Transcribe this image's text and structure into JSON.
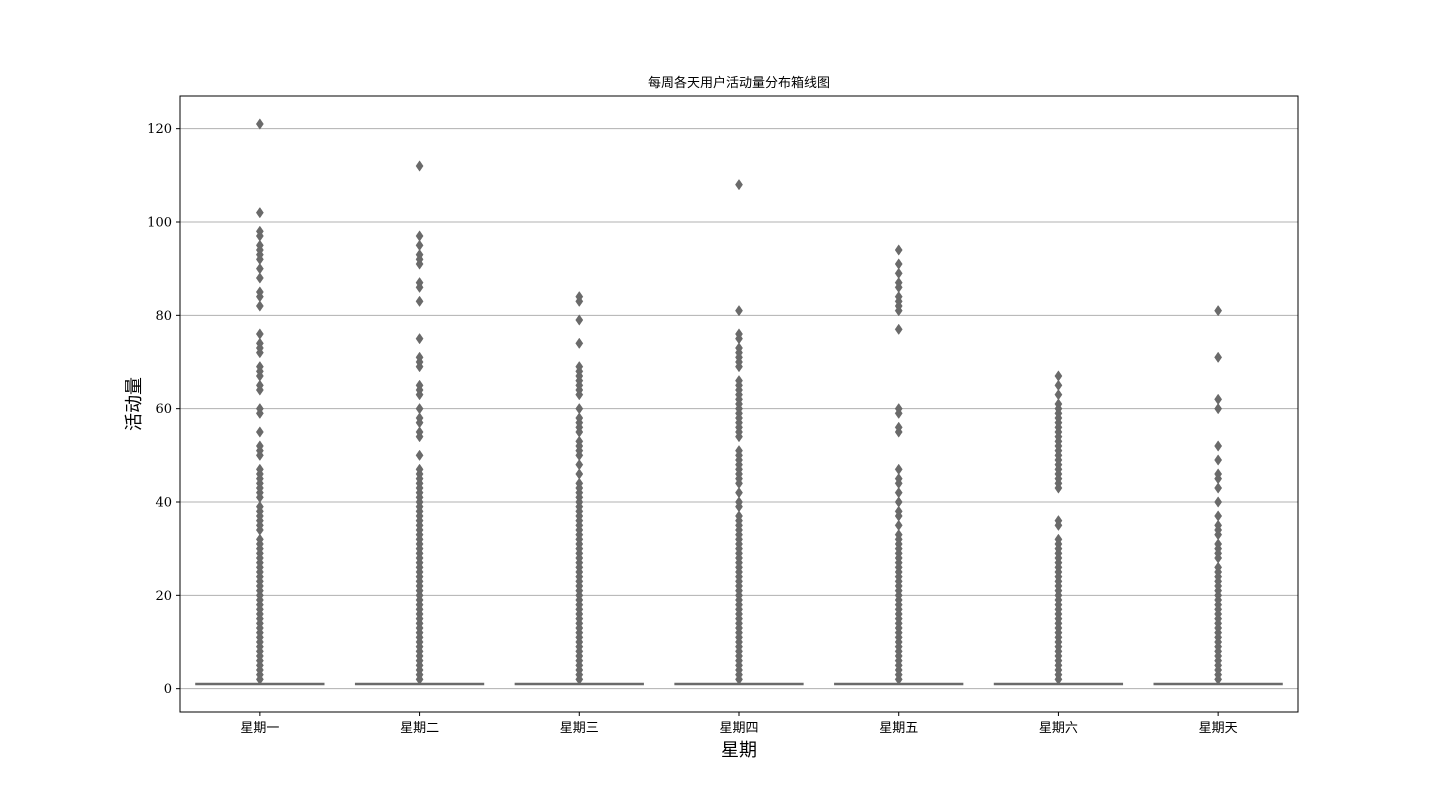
{
  "chart_data": {
    "type": "box",
    "title": "每周各天用户活动量分布箱线图",
    "xlabel": "星期",
    "ylabel": "活动量",
    "categories": [
      "星期一",
      "星期二",
      "星期三",
      "星期四",
      "星期五",
      "星期六",
      "星期天"
    ],
    "ylim": [
      -5,
      127
    ],
    "yticks": [
      0,
      20,
      40,
      60,
      80,
      100,
      120
    ],
    "grid": "y",
    "box_color": "#6a6a6a",
    "median": [
      1,
      1,
      1,
      1,
      1,
      1,
      1
    ],
    "q1": [
      1,
      1,
      1,
      1,
      1,
      1,
      1
    ],
    "q3": [
      1,
      1,
      1,
      1,
      1,
      1,
      1
    ],
    "whisker_low": [
      1,
      1,
      1,
      1,
      1,
      1,
      1
    ],
    "whisker_high": [
      1,
      1,
      1,
      1,
      1,
      1,
      1
    ],
    "outliers": [
      [
        2,
        3,
        4,
        5,
        6,
        7,
        8,
        9,
        10,
        11,
        12,
        13,
        14,
        15,
        16,
        17,
        18,
        19,
        20,
        21,
        22,
        23,
        24,
        25,
        26,
        27,
        28,
        29,
        30,
        31,
        32,
        34,
        35,
        36,
        37,
        38,
        39,
        41,
        42,
        43,
        44,
        45,
        46,
        47,
        50,
        51,
        52,
        55,
        59,
        60,
        64,
        65,
        67,
        68,
        69,
        72,
        73,
        74,
        76,
        82,
        84,
        85,
        88,
        90,
        92,
        93,
        94,
        95,
        97,
        98,
        102,
        121
      ],
      [
        2,
        3,
        4,
        5,
        6,
        7,
        8,
        9,
        10,
        11,
        12,
        13,
        14,
        15,
        16,
        17,
        18,
        19,
        20,
        21,
        22,
        23,
        24,
        25,
        26,
        27,
        28,
        29,
        30,
        31,
        32,
        33,
        34,
        35,
        36,
        37,
        38,
        39,
        40,
        41,
        42,
        43,
        44,
        45,
        46,
        47,
        50,
        54,
        55,
        57,
        58,
        60,
        63,
        64,
        65,
        69,
        70,
        71,
        75,
        83,
        86,
        87,
        91,
        92,
        93,
        95,
        97,
        112
      ],
      [
        2,
        3,
        4,
        5,
        6,
        7,
        8,
        9,
        10,
        11,
        12,
        13,
        14,
        15,
        16,
        17,
        18,
        19,
        20,
        21,
        22,
        23,
        24,
        25,
        26,
        27,
        28,
        29,
        30,
        31,
        32,
        33,
        34,
        35,
        36,
        37,
        38,
        39,
        40,
        41,
        42,
        43,
        44,
        46,
        48,
        50,
        51,
        52,
        53,
        55,
        56,
        57,
        58,
        60,
        63,
        64,
        65,
        66,
        67,
        68,
        69,
        74,
        79,
        83,
        84
      ],
      [
        2,
        3,
        4,
        5,
        6,
        7,
        8,
        9,
        10,
        11,
        12,
        13,
        14,
        15,
        16,
        17,
        18,
        19,
        20,
        21,
        22,
        23,
        24,
        25,
        26,
        27,
        28,
        29,
        30,
        31,
        32,
        33,
        34,
        35,
        36,
        37,
        39,
        40,
        42,
        44,
        45,
        46,
        47,
        48,
        49,
        50,
        51,
        54,
        55,
        56,
        57,
        58,
        59,
        60,
        61,
        62,
        63,
        64,
        65,
        66,
        69,
        70,
        71,
        72,
        73,
        75,
        76,
        81,
        108
      ],
      [
        2,
        3,
        4,
        5,
        6,
        7,
        8,
        9,
        10,
        11,
        12,
        13,
        14,
        15,
        16,
        17,
        18,
        19,
        20,
        21,
        22,
        23,
        24,
        25,
        26,
        27,
        28,
        29,
        30,
        31,
        32,
        33,
        35,
        37,
        38,
        40,
        42,
        44,
        45,
        47,
        55,
        56,
        59,
        60,
        77,
        81,
        82,
        83,
        84,
        86,
        87,
        89,
        91,
        94
      ],
      [
        2,
        3,
        4,
        5,
        6,
        7,
        8,
        9,
        10,
        11,
        12,
        13,
        14,
        15,
        16,
        17,
        18,
        19,
        20,
        21,
        22,
        23,
        24,
        25,
        26,
        27,
        28,
        29,
        30,
        31,
        32,
        35,
        36,
        43,
        44,
        45,
        46,
        47,
        48,
        49,
        50,
        51,
        52,
        53,
        54,
        55,
        56,
        57,
        58,
        59,
        60,
        61,
        63,
        65,
        67
      ],
      [
        2,
        3,
        4,
        5,
        6,
        7,
        8,
        9,
        10,
        11,
        12,
        13,
        14,
        15,
        16,
        17,
        18,
        19,
        20,
        21,
        22,
        23,
        24,
        25,
        26,
        28,
        29,
        30,
        31,
        33,
        34,
        35,
        37,
        40,
        43,
        45,
        46,
        49,
        52,
        60,
        62,
        71,
        81
      ]
    ]
  }
}
